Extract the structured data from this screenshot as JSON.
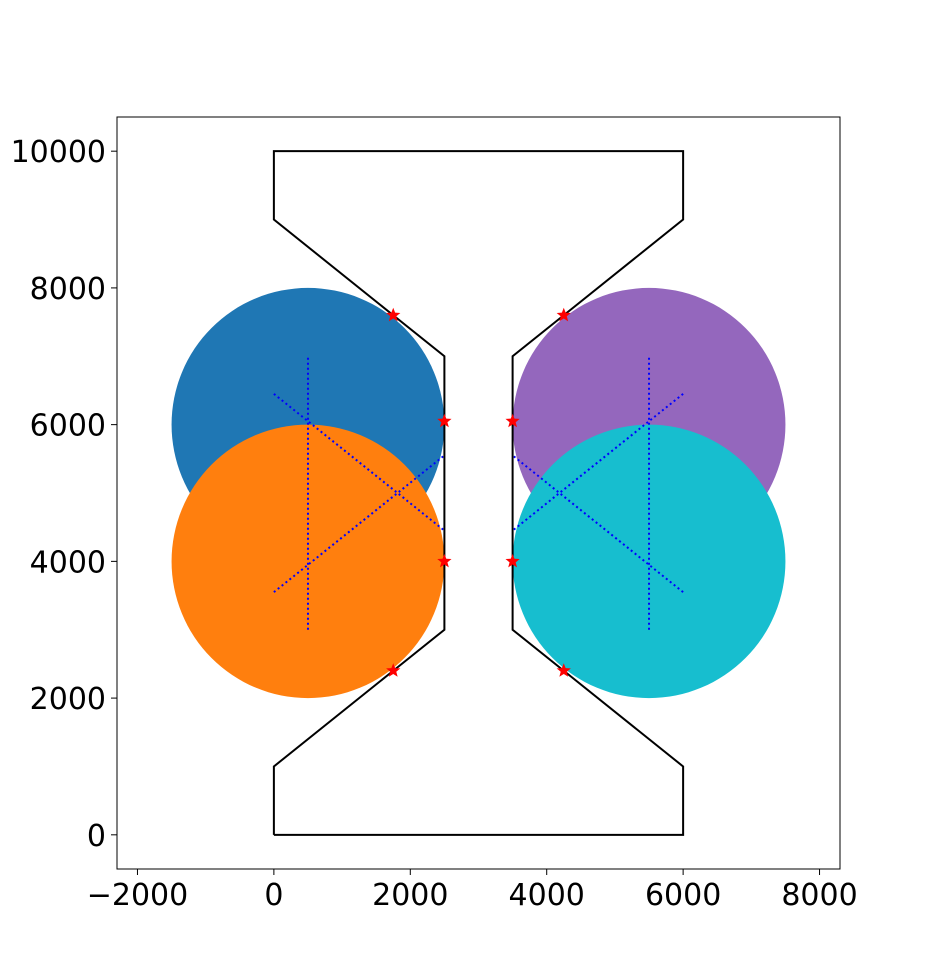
{
  "chart_data": {
    "type": "scatter",
    "title": "",
    "xlabel": "",
    "ylabel": "",
    "xlim": [
      -2300,
      8300
    ],
    "ylim": [
      -500,
      10500
    ],
    "xticks": [
      -2000,
      0,
      2000,
      4000,
      6000,
      8000
    ],
    "xtick_labels": [
      "−2000",
      "0",
      "2000",
      "4000",
      "6000",
      "8000"
    ],
    "yticks": [
      0,
      2000,
      4000,
      6000,
      8000,
      10000
    ],
    "ytick_labels": [
      "0",
      "2000",
      "4000",
      "6000",
      "8000",
      "10000"
    ],
    "grid": false,
    "legend": "none",
    "outline": {
      "color": "#000000",
      "points": [
        [
          0,
          0
        ],
        [
          6000,
          0
        ],
        [
          6000,
          1000
        ],
        [
          4250,
          2400
        ],
        [
          3500,
          3000
        ],
        [
          3500,
          7000
        ],
        [
          4250,
          7600
        ],
        [
          6000,
          9000
        ],
        [
          6000,
          10000
        ],
        [
          0,
          10000
        ],
        [
          0,
          9000
        ],
        [
          1750,
          7600
        ],
        [
          2500,
          7000
        ],
        [
          2500,
          3000
        ],
        [
          1750,
          2400
        ],
        [
          0,
          1000
        ],
        [
          0,
          0
        ]
      ]
    },
    "circles": [
      {
        "cx": 500,
        "cy": 6000,
        "r": 2000,
        "color": "#1f77b4"
      },
      {
        "cx": 500,
        "cy": 4000,
        "r": 2000,
        "color": "#ff7f0e"
      },
      {
        "cx": 5500,
        "cy": 6000,
        "r": 2000,
        "color": "#9467bd"
      },
      {
        "cx": 5500,
        "cy": 4000,
        "r": 2000,
        "color": "#17becf"
      }
    ],
    "dotted_lines": {
      "color": "#0000ff",
      "segments": [
        [
          [
            500,
            3000
          ],
          [
            500,
            7000
          ]
        ],
        [
          [
            0,
            6450
          ],
          [
            2500,
            4450
          ]
        ],
        [
          [
            0,
            3550
          ],
          [
            2500,
            5550
          ]
        ],
        [
          [
            5500,
            3000
          ],
          [
            5500,
            7000
          ]
        ],
        [
          [
            6000,
            6450
          ],
          [
            3500,
            4450
          ]
        ],
        [
          [
            6000,
            3550
          ],
          [
            3500,
            5550
          ]
        ]
      ]
    },
    "markers": {
      "symbol": "star",
      "color": "#ff0000",
      "points": [
        [
          1750,
          7600
        ],
        [
          2500,
          6050
        ],
        [
          2500,
          4000
        ],
        [
          1750,
          2400
        ],
        [
          4250,
          7600
        ],
        [
          3500,
          6050
        ],
        [
          3500,
          4000
        ],
        [
          4250,
          2400
        ]
      ]
    }
  }
}
